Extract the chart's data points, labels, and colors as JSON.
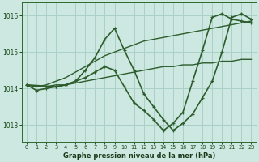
{
  "xlabel": "Graphe pression niveau de la mer (hPa)",
  "xlim": [
    -0.5,
    23.5
  ],
  "ylim": [
    1012.55,
    1016.35
  ],
  "yticks": [
    1013,
    1014,
    1015,
    1016
  ],
  "xticks": [
    0,
    1,
    2,
    3,
    4,
    5,
    6,
    7,
    8,
    9,
    10,
    11,
    12,
    13,
    14,
    15,
    16,
    17,
    18,
    19,
    20,
    21,
    22,
    23
  ],
  "background_color": "#cce8e0",
  "grid_color": "#aad0c8",
  "line_color": "#2d5c2d",
  "lines": [
    {
      "x": [
        0,
        1,
        2,
        3,
        4,
        5,
        6,
        7,
        8,
        9,
        10,
        11,
        12,
        13,
        14,
        15,
        16,
        17,
        18,
        19,
        20,
        21,
        22,
        23
      ],
      "y": [
        1014.1,
        1014.05,
        1014.05,
        1014.1,
        1014.1,
        1014.15,
        1014.2,
        1014.25,
        1014.3,
        1014.35,
        1014.4,
        1014.45,
        1014.5,
        1014.55,
        1014.6,
        1014.6,
        1014.65,
        1014.65,
        1014.7,
        1014.7,
        1014.75,
        1014.75,
        1014.8,
        1014.8
      ],
      "marker": null,
      "lw": 1.0
    },
    {
      "x": [
        0,
        1,
        2,
        3,
        4,
        5,
        6,
        7,
        8,
        9,
        10,
        11,
        12,
        13,
        14,
        15,
        16,
        17,
        18,
        19,
        20,
        21,
        22,
        23
      ],
      "y": [
        1014.1,
        1014.05,
        1014.1,
        1014.2,
        1014.3,
        1014.45,
        1014.6,
        1014.75,
        1014.9,
        1015.0,
        1015.1,
        1015.2,
        1015.3,
        1015.35,
        1015.4,
        1015.45,
        1015.5,
        1015.55,
        1015.6,
        1015.65,
        1015.7,
        1015.75,
        1015.8,
        1015.85
      ],
      "marker": null,
      "lw": 1.0
    },
    {
      "x": [
        0,
        3,
        4,
        5,
        6,
        7,
        8,
        9,
        10,
        11,
        12,
        13,
        14,
        15,
        16,
        17,
        18,
        19,
        20,
        21,
        22,
        23
      ],
      "y": [
        1014.1,
        1014.05,
        1014.1,
        1014.2,
        1014.5,
        1014.85,
        1015.35,
        1015.65,
        1015.05,
        1014.5,
        1013.85,
        1013.5,
        1013.15,
        1012.85,
        1013.05,
        1013.3,
        1013.75,
        1014.2,
        1015.0,
        1015.95,
        1016.05,
        1015.9
      ],
      "marker": "+",
      "lw": 1.2
    },
    {
      "x": [
        0,
        1,
        2,
        3,
        4,
        5,
        6,
        7,
        8,
        9,
        10,
        11,
        12,
        13,
        14,
        15,
        16,
        17,
        18,
        19,
        20,
        21,
        22,
        23
      ],
      "y": [
        1014.1,
        1013.95,
        1014.0,
        1014.05,
        1014.1,
        1014.2,
        1014.3,
        1014.45,
        1014.6,
        1014.5,
        1014.05,
        1013.6,
        1013.4,
        1013.15,
        1012.85,
        1013.05,
        1013.35,
        1014.2,
        1015.05,
        1015.95,
        1016.05,
        1015.9,
        1015.85,
        1015.8
      ],
      "marker": "+",
      "lw": 1.2
    }
  ]
}
